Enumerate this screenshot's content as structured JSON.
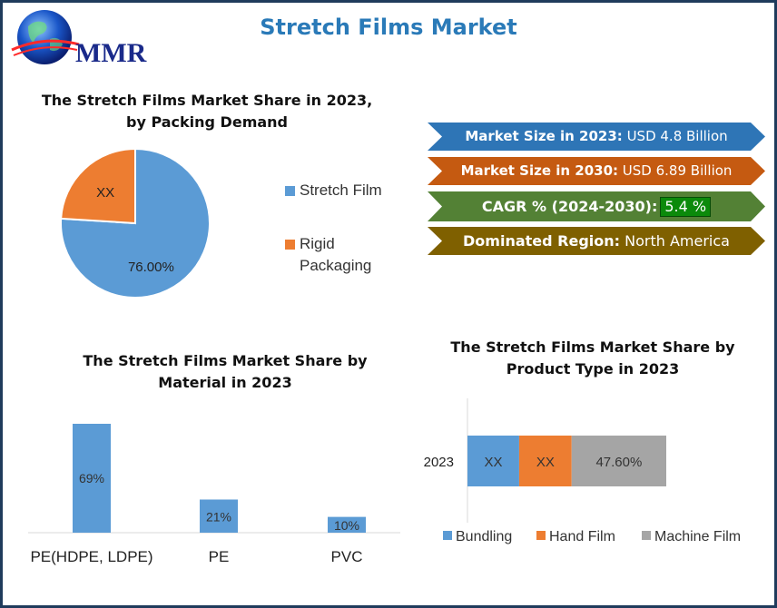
{
  "header": {
    "title": "Stretch Films Market",
    "logo_text": "MMR"
  },
  "colors": {
    "blue": "#5b9bd5",
    "orange": "#ed7d31",
    "gray": "#a5a5a5",
    "banner_blue": "#2e75b6",
    "banner_orange": "#c55a11",
    "banner_green": "#538135",
    "banner_olive": "#7f6000"
  },
  "banners": [
    {
      "label": "Market Size in 2023:",
      "value": "USD 4.8 Billion"
    },
    {
      "label": "Market Size in 2030:",
      "value": "USD 6.89 Billion"
    },
    {
      "label": "CAGR % (2024-2030):",
      "value": "5.4 %"
    },
    {
      "label": "Dominated Region:",
      "value": "North America"
    }
  ],
  "chart_data": [
    {
      "type": "pie",
      "title": "The Stretch Films Market Share in 2023, by Packing Demand",
      "title_lines": [
        "The Stretch Films Market Share in 2023,",
        "by Packing Demand"
      ],
      "categories": [
        "Stretch Film",
        "Rigid Packaging"
      ],
      "values": [
        76.0,
        24.0
      ],
      "data_labels": [
        "76.00%",
        "XX"
      ],
      "legend_lines": [
        [
          "Stretch Film"
        ],
        [
          "Rigid",
          "Packaging"
        ]
      ],
      "legend": "right"
    },
    {
      "type": "bar",
      "title": "The Stretch Films Market Share by Material in 2023",
      "title_lines": [
        "The Stretch Films Market Share by",
        "Material in 2023"
      ],
      "categories": [
        "PE(HDPE, LDPE)",
        "PE",
        "PVC"
      ],
      "values": [
        69,
        21,
        10
      ],
      "data_labels": [
        "69%",
        "21%",
        "10%"
      ],
      "ylim": [
        0,
        69
      ]
    },
    {
      "type": "bar",
      "orientation": "horizontal-stacked",
      "title": "The Stretch Films Market Share by Product Type in 2023",
      "title_lines": [
        "The Stretch Films Market Share by",
        "Product Type in 2023"
      ],
      "categories": [
        "2023"
      ],
      "series": [
        {
          "name": "Bundling",
          "values": [
            26
          ],
          "label": "XX"
        },
        {
          "name": "Hand Film",
          "values": [
            26.4
          ],
          "label": "XX"
        },
        {
          "name": "Machine Film",
          "values": [
            47.6
          ],
          "label": "47.60%"
        }
      ],
      "legend": "bottom"
    }
  ]
}
